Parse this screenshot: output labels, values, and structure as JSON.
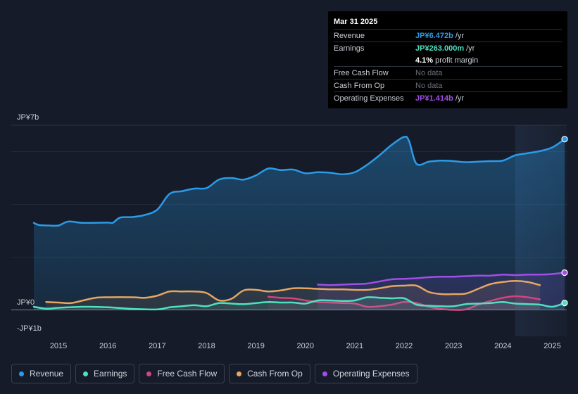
{
  "chart_data": {
    "type": "area",
    "y_labels": {
      "top": "JP¥7b",
      "zero": "JP¥0",
      "bottom": "-JP¥1b"
    },
    "ylim": [
      -1,
      7
    ],
    "x_ticks": [
      "2015",
      "2016",
      "2017",
      "2018",
      "2019",
      "2020",
      "2021",
      "2022",
      "2023",
      "2024",
      "2025"
    ],
    "xlim": [
      2014.5,
      2025.25
    ],
    "highlight_from": 2024.25,
    "series": [
      {
        "name": "Revenue",
        "key": "revenue",
        "color": "#2b9be8",
        "points": [
          [
            2014.5,
            3.3
          ],
          [
            2014.6,
            3.22
          ],
          [
            2014.8,
            3.2
          ],
          [
            2015.0,
            3.2
          ],
          [
            2015.2,
            3.35
          ],
          [
            2015.5,
            3.3
          ],
          [
            2016.0,
            3.31
          ],
          [
            2016.1,
            3.3
          ],
          [
            2016.25,
            3.5
          ],
          [
            2016.5,
            3.52
          ],
          [
            2016.75,
            3.6
          ],
          [
            2017.0,
            3.8
          ],
          [
            2017.25,
            4.4
          ],
          [
            2017.5,
            4.5
          ],
          [
            2017.75,
            4.6
          ],
          [
            2018.0,
            4.62
          ],
          [
            2018.25,
            4.94
          ],
          [
            2018.5,
            5.0
          ],
          [
            2018.75,
            4.94
          ],
          [
            2019.0,
            5.1
          ],
          [
            2019.25,
            5.36
          ],
          [
            2019.5,
            5.3
          ],
          [
            2019.75,
            5.32
          ],
          [
            2020.0,
            5.18
          ],
          [
            2020.25,
            5.22
          ],
          [
            2020.5,
            5.2
          ],
          [
            2020.75,
            5.14
          ],
          [
            2021.0,
            5.22
          ],
          [
            2021.25,
            5.5
          ],
          [
            2021.5,
            5.86
          ],
          [
            2021.75,
            6.26
          ],
          [
            2022.0,
            6.56
          ],
          [
            2022.1,
            6.4
          ],
          [
            2022.25,
            5.54
          ],
          [
            2022.5,
            5.62
          ],
          [
            2022.75,
            5.66
          ],
          [
            2023.0,
            5.64
          ],
          [
            2023.25,
            5.6
          ],
          [
            2023.5,
            5.62
          ],
          [
            2023.75,
            5.64
          ],
          [
            2024.0,
            5.66
          ],
          [
            2024.25,
            5.86
          ],
          [
            2024.5,
            5.94
          ],
          [
            2024.75,
            6.02
          ],
          [
            2025.0,
            6.16
          ],
          [
            2025.25,
            6.472
          ]
        ]
      },
      {
        "name": "Earnings",
        "key": "earnings",
        "color": "#4fe0c0",
        "points": [
          [
            2014.5,
            0.12
          ],
          [
            2014.75,
            0.05
          ],
          [
            2015.0,
            0.08
          ],
          [
            2015.5,
            0.12
          ],
          [
            2016.0,
            0.1
          ],
          [
            2016.5,
            0.04
          ],
          [
            2017.0,
            0.02
          ],
          [
            2017.25,
            0.1
          ],
          [
            2017.5,
            0.14
          ],
          [
            2017.75,
            0.18
          ],
          [
            2018.0,
            0.14
          ],
          [
            2018.25,
            0.26
          ],
          [
            2018.5,
            0.24
          ],
          [
            2018.75,
            0.22
          ],
          [
            2019.0,
            0.26
          ],
          [
            2019.25,
            0.3
          ],
          [
            2019.5,
            0.28
          ],
          [
            2019.75,
            0.28
          ],
          [
            2020.0,
            0.24
          ],
          [
            2020.25,
            0.36
          ],
          [
            2020.5,
            0.36
          ],
          [
            2020.75,
            0.34
          ],
          [
            2021.0,
            0.36
          ],
          [
            2021.25,
            0.48
          ],
          [
            2021.5,
            0.46
          ],
          [
            2021.75,
            0.44
          ],
          [
            2022.0,
            0.44
          ],
          [
            2022.25,
            0.2
          ],
          [
            2022.5,
            0.16
          ],
          [
            2022.75,
            0.14
          ],
          [
            2023.0,
            0.14
          ],
          [
            2023.25,
            0.22
          ],
          [
            2023.5,
            0.24
          ],
          [
            2023.75,
            0.26
          ],
          [
            2024.0,
            0.3
          ],
          [
            2024.25,
            0.24
          ],
          [
            2024.5,
            0.22
          ],
          [
            2024.75,
            0.2
          ],
          [
            2025.0,
            0.12
          ],
          [
            2025.25,
            0.263
          ]
        ]
      },
      {
        "name": "Free Cash Flow",
        "key": "fcf",
        "color": "#d1457f",
        "points": [
          [
            2019.25,
            0.5
          ],
          [
            2019.5,
            0.46
          ],
          [
            2019.75,
            0.44
          ],
          [
            2020.0,
            0.36
          ],
          [
            2020.25,
            0.3
          ],
          [
            2020.5,
            0.28
          ],
          [
            2020.75,
            0.26
          ],
          [
            2021.0,
            0.24
          ],
          [
            2021.25,
            0.12
          ],
          [
            2021.5,
            0.14
          ],
          [
            2021.75,
            0.2
          ],
          [
            2022.0,
            0.3
          ],
          [
            2022.25,
            0.26
          ],
          [
            2022.5,
            0.12
          ],
          [
            2022.75,
            0.04
          ],
          [
            2023.0,
            0.0
          ],
          [
            2023.25,
            0.02
          ],
          [
            2023.5,
            0.2
          ],
          [
            2023.75,
            0.34
          ],
          [
            2024.0,
            0.46
          ],
          [
            2024.25,
            0.52
          ],
          [
            2024.5,
            0.48
          ],
          [
            2024.75,
            0.4
          ]
        ]
      },
      {
        "name": "Cash From Op",
        "key": "cfo",
        "color": "#e7a661",
        "points": [
          [
            2014.75,
            0.3
          ],
          [
            2015.0,
            0.28
          ],
          [
            2015.25,
            0.26
          ],
          [
            2015.5,
            0.36
          ],
          [
            2015.75,
            0.46
          ],
          [
            2016.0,
            0.48
          ],
          [
            2016.5,
            0.48
          ],
          [
            2016.75,
            0.46
          ],
          [
            2017.0,
            0.54
          ],
          [
            2017.25,
            0.7
          ],
          [
            2017.5,
            0.7
          ],
          [
            2017.75,
            0.7
          ],
          [
            2018.0,
            0.64
          ],
          [
            2018.25,
            0.36
          ],
          [
            2018.5,
            0.42
          ],
          [
            2018.75,
            0.74
          ],
          [
            2019.0,
            0.76
          ],
          [
            2019.25,
            0.7
          ],
          [
            2019.5,
            0.74
          ],
          [
            2019.75,
            0.82
          ],
          [
            2020.0,
            0.82
          ],
          [
            2020.25,
            0.8
          ],
          [
            2020.5,
            0.78
          ],
          [
            2020.75,
            0.78
          ],
          [
            2021.0,
            0.76
          ],
          [
            2021.25,
            0.76
          ],
          [
            2021.5,
            0.82
          ],
          [
            2021.75,
            0.9
          ],
          [
            2022.0,
            0.92
          ],
          [
            2022.25,
            0.92
          ],
          [
            2022.5,
            0.68
          ],
          [
            2022.75,
            0.6
          ],
          [
            2023.0,
            0.6
          ],
          [
            2023.25,
            0.62
          ],
          [
            2023.5,
            0.8
          ],
          [
            2023.75,
            0.98
          ],
          [
            2024.0,
            1.06
          ],
          [
            2024.25,
            1.1
          ],
          [
            2024.5,
            1.06
          ],
          [
            2024.75,
            0.94
          ]
        ]
      },
      {
        "name": "Operating Expenses",
        "key": "opex",
        "color": "#a24de8",
        "points": [
          [
            2020.25,
            0.96
          ],
          [
            2020.5,
            0.94
          ],
          [
            2020.75,
            0.96
          ],
          [
            2021.0,
            0.98
          ],
          [
            2021.25,
            1.0
          ],
          [
            2021.5,
            1.08
          ],
          [
            2021.75,
            1.16
          ],
          [
            2022.0,
            1.18
          ],
          [
            2022.25,
            1.2
          ],
          [
            2022.5,
            1.24
          ],
          [
            2022.75,
            1.26
          ],
          [
            2023.0,
            1.26
          ],
          [
            2023.25,
            1.28
          ],
          [
            2023.5,
            1.3
          ],
          [
            2023.75,
            1.3
          ],
          [
            2024.0,
            1.34
          ],
          [
            2024.25,
            1.32
          ],
          [
            2024.5,
            1.34
          ],
          [
            2024.75,
            1.34
          ],
          [
            2025.0,
            1.36
          ],
          [
            2025.25,
            1.414
          ]
        ]
      }
    ]
  },
  "tooltip": {
    "date": "Mar 31 2025",
    "rows": [
      {
        "label": "Revenue",
        "value": "JP¥6.472b",
        "unit": "/yr",
        "color": "#2b9be8"
      },
      {
        "label": "Earnings",
        "value": "JP¥263.000m",
        "unit": "/yr",
        "color": "#4fe0c0"
      },
      {
        "label": "",
        "value": "4.1%",
        "unit": "profit margin",
        "color": "#ffffff"
      },
      {
        "label": "Free Cash Flow",
        "value": "No data",
        "unit": "",
        "color": "#6b717d",
        "nodata": true
      },
      {
        "label": "Cash From Op",
        "value": "No data",
        "unit": "",
        "color": "#6b717d",
        "nodata": true
      },
      {
        "label": "Operating Expenses",
        "value": "JP¥1.414b",
        "unit": "/yr",
        "color": "#a24de8"
      }
    ]
  },
  "legend": [
    {
      "label": "Revenue",
      "color": "#2b9be8"
    },
    {
      "label": "Earnings",
      "color": "#4fe0c0"
    },
    {
      "label": "Free Cash Flow",
      "color": "#d1457f"
    },
    {
      "label": "Cash From Op",
      "color": "#e7a661"
    },
    {
      "label": "Operating Expenses",
      "color": "#a24de8"
    }
  ]
}
